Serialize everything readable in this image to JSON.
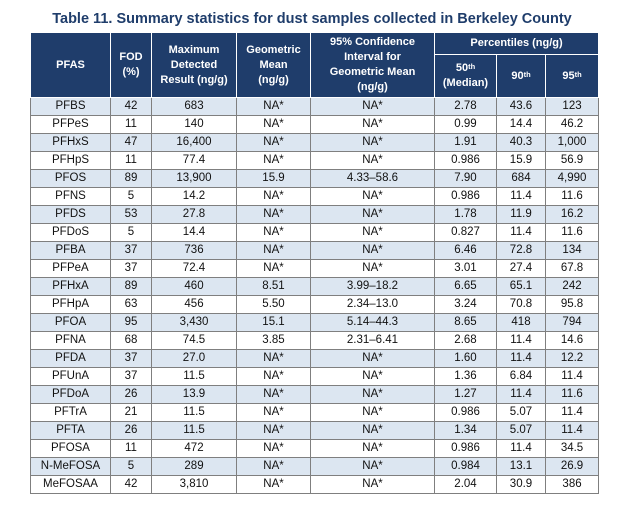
{
  "title": "Table 11. Summary statistics for dust samples collected in Berkeley County",
  "headers": {
    "pfas": "PFAS",
    "fod_line1": "FOD",
    "fod_line2": "(%)",
    "max_line1": "Maximum",
    "max_line2": "Detected",
    "max_line3": "Result (ng/g)",
    "geo_line1": "Geometric",
    "geo_line2": "Mean",
    "geo_line3": "(ng/g)",
    "ci_line1": "95% Confidence",
    "ci_line2": "Interval for",
    "ci_line3": "Geometric Mean",
    "ci_line4": "(ng/g)",
    "percentiles": "Percentiles (ng/g)",
    "p50_num": "50",
    "p50_sup": "th",
    "p50_label": "(Median)",
    "p90_num": "90",
    "p90_sup": "th",
    "p95_num": "95",
    "p95_sup": "th"
  },
  "rows": [
    [
      "PFBS",
      "42",
      "683",
      "NA*",
      "NA*",
      "2.78",
      "43.6",
      "123"
    ],
    [
      "PFPeS",
      "11",
      "140",
      "NA*",
      "NA*",
      "0.99",
      "14.4",
      "46.2"
    ],
    [
      "PFHxS",
      "47",
      "16,400",
      "NA*",
      "NA*",
      "1.91",
      "40.3",
      "1,000"
    ],
    [
      "PFHpS",
      "11",
      "77.4",
      "NA*",
      "NA*",
      "0.986",
      "15.9",
      "56.9"
    ],
    [
      "PFOS",
      "89",
      "13,900",
      "15.9",
      "4.33–58.6",
      "7.90",
      "684",
      "4,990"
    ],
    [
      "PFNS",
      "5",
      "14.2",
      "NA*",
      "NA*",
      "0.986",
      "11.4",
      "11.6"
    ],
    [
      "PFDS",
      "53",
      "27.8",
      "NA*",
      "NA*",
      "1.78",
      "11.9",
      "16.2"
    ],
    [
      "PFDoS",
      "5",
      "14.4",
      "NA*",
      "NA*",
      "0.827",
      "11.4",
      "11.6"
    ],
    [
      "PFBA",
      "37",
      "736",
      "NA*",
      "NA*",
      "6.46",
      "72.8",
      "134"
    ],
    [
      "PFPeA",
      "37",
      "72.4",
      "NA*",
      "NA*",
      "3.01",
      "27.4",
      "67.8"
    ],
    [
      "PFHxA",
      "89",
      "460",
      "8.51",
      "3.99–18.2",
      "6.65",
      "65.1",
      "242"
    ],
    [
      "PFHpA",
      "63",
      "456",
      "5.50",
      "2.34–13.0",
      "3.24",
      "70.8",
      "95.8"
    ],
    [
      "PFOA",
      "95",
      "3,430",
      "15.1",
      "5.14–44.3",
      "8.65",
      "418",
      "794"
    ],
    [
      "PFNA",
      "68",
      "74.5",
      "3.85",
      "2.31–6.41",
      "2.68",
      "11.4",
      "14.6"
    ],
    [
      "PFDA",
      "37",
      "27.0",
      "NA*",
      "NA*",
      "1.60",
      "11.4",
      "12.2"
    ],
    [
      "PFUnA",
      "37",
      "11.5",
      "NA*",
      "NA*",
      "1.36",
      "6.84",
      "11.4"
    ],
    [
      "PFDoA",
      "26",
      "13.9",
      "NA*",
      "NA*",
      "1.27",
      "11.4",
      "11.6"
    ],
    [
      "PFTrA",
      "21",
      "11.5",
      "NA*",
      "NA*",
      "0.986",
      "5.07",
      "11.4"
    ],
    [
      "PFTA",
      "26",
      "11.5",
      "NA*",
      "NA*",
      "1.34",
      "5.07",
      "11.4"
    ],
    [
      "PFOSA",
      "11",
      "472",
      "NA*",
      "NA*",
      "0.986",
      "11.4",
      "34.5"
    ],
    [
      "N-MeFOSA",
      "5",
      "289",
      "NA*",
      "NA*",
      "0.984",
      "13.1",
      "26.9"
    ],
    [
      "MeFOSAA",
      "42",
      "3,810",
      "NA*",
      "NA*",
      "2.04",
      "30.9",
      "386"
    ]
  ]
}
